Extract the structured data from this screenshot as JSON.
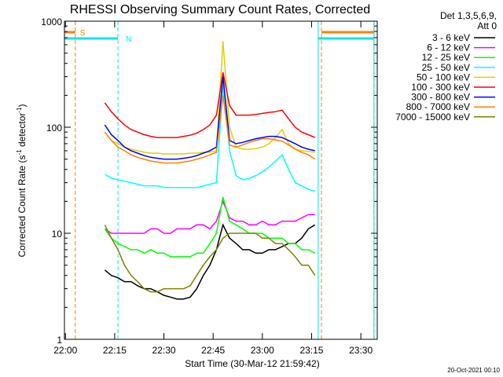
{
  "chart_data": {
    "type": "line",
    "title": "RHESSI Observing Summary Count Rates, Corrected",
    "x_label": "Start Time (30-Mar-12 21:59:42)",
    "y_label_parts": [
      "Corrected Count Rate (s",
      "-1",
      " detector",
      "-1",
      ")"
    ],
    "legend_header": [
      "Det 1,3,5,6,9,",
      "Att 0"
    ],
    "footer": "20-Oct-2021 00:10",
    "log_y": true,
    "xlim": [
      "21:59:42",
      "23:35"
    ],
    "xticks": [
      "22:00",
      "22:15",
      "22:30",
      "22:45",
      "23:00",
      "23:15",
      "23:30"
    ],
    "ylim": [
      1,
      1000
    ],
    "yticks": [
      1,
      10,
      100,
      1000
    ],
    "yminorticks": [
      2,
      3,
      4,
      5,
      6,
      7,
      8,
      9,
      20,
      30,
      40,
      50,
      60,
      70,
      80,
      90,
      200,
      300,
      400,
      500,
      600,
      700,
      800,
      900
    ],
    "flags": [
      {
        "label": "S",
        "color": "#ff8000",
        "intervals": [
          [
            "21:59:42",
            "22:03"
          ],
          [
            "23:18",
            "23:34"
          ]
        ]
      },
      {
        "label": "N",
        "color": "#00e8e8",
        "intervals": [
          [
            "21:59:42",
            "22:16"
          ],
          [
            "23:17",
            "23:34"
          ]
        ]
      }
    ],
    "x": [
      "22:12",
      "22:14",
      "22:16",
      "22:18",
      "22:20",
      "22:22",
      "22:24",
      "22:26",
      "22:28",
      "22:30",
      "22:32",
      "22:34",
      "22:36",
      "22:38",
      "22:40",
      "22:42",
      "22:44",
      "22:46",
      "22:48",
      "22:50",
      "22:52",
      "22:54",
      "22:56",
      "22:58",
      "23:00",
      "23:02",
      "23:04",
      "23:06",
      "23:08",
      "23:10",
      "23:12",
      "23:14",
      "23:16"
    ],
    "series": [
      {
        "name": "3 - 6 keV",
        "color": "#000000",
        "values": [
          4.5,
          4,
          3.8,
          3.5,
          3.5,
          3.2,
          3,
          3,
          2.8,
          2.6,
          2.5,
          2.4,
          2.4,
          2.5,
          3,
          4,
          5,
          7,
          12,
          9,
          8,
          7,
          7,
          6.5,
          6.5,
          7,
          7,
          7.5,
          8,
          8,
          9,
          11,
          12
        ]
      },
      {
        "name": "6 - 12 keV",
        "color": "#ff00ff",
        "values": [
          11,
          10,
          10,
          10,
          10,
          10,
          10,
          11,
          11,
          10,
          10,
          11,
          11,
          11,
          12,
          12,
          11,
          13,
          20,
          14,
          13,
          13,
          12,
          12,
          13,
          12,
          12,
          13,
          13,
          13,
          14,
          15,
          15
        ]
      },
      {
        "name": "12 - 25 keV",
        "color": "#00ff00",
        "values": [
          11,
          9,
          8,
          7.5,
          7,
          7,
          6.5,
          7,
          6.5,
          6.5,
          6,
          6,
          6,
          6,
          6.5,
          6.5,
          8,
          10,
          22,
          13,
          12,
          11,
          10,
          10,
          10,
          9,
          9,
          9,
          8,
          8,
          7,
          7,
          6.5
        ]
      },
      {
        "name": "25 - 50 keV",
        "color": "#00ffff",
        "values": [
          36,
          33,
          32,
          31,
          30,
          29,
          28,
          28,
          28,
          27,
          27,
          27,
          27,
          27,
          27,
          28,
          29,
          30,
          250,
          60,
          35,
          32,
          33,
          35,
          38,
          42,
          48,
          55,
          40,
          30,
          28,
          26,
          25
        ]
      },
      {
        "name": "50 - 100 keV",
        "color": "#e0d000",
        "values": [
          90,
          75,
          70,
          65,
          62,
          60,
          58,
          57,
          57,
          56,
          56,
          56,
          56,
          57,
          57,
          58,
          58,
          60,
          650,
          100,
          65,
          62,
          62,
          63,
          65,
          70,
          80,
          95,
          70,
          62,
          60,
          59,
          58
        ]
      },
      {
        "name": "100 - 300 keV",
        "color": "#ff0000",
        "values": [
          170,
          140,
          120,
          105,
          95,
          90,
          85,
          82,
          80,
          80,
          80,
          80,
          82,
          84,
          88,
          95,
          105,
          130,
          330,
          160,
          130,
          130,
          130,
          132,
          135,
          138,
          140,
          145,
          120,
          100,
          90,
          85,
          80
        ]
      },
      {
        "name": "300 - 800 keV",
        "color": "#0000ff",
        "values": [
          105,
          85,
          75,
          65,
          60,
          57,
          54,
          52,
          51,
          50,
          50,
          50,
          51,
          52,
          54,
          57,
          60,
          65,
          300,
          75,
          70,
          72,
          75,
          78,
          80,
          82,
          82,
          80,
          75,
          70,
          65,
          62,
          60
        ]
      },
      {
        "name": "800 - 7000 keV",
        "color": "#ff8000",
        "values": [
          90,
          75,
          65,
          60,
          55,
          52,
          50,
          48,
          47,
          46,
          46,
          46,
          47,
          48,
          50,
          52,
          55,
          58,
          200,
          68,
          65,
          68,
          72,
          75,
          78,
          78,
          76,
          74,
          68,
          62,
          58,
          55,
          50
        ]
      },
      {
        "name": "7000 - 15000 keV",
        "color": "#808000",
        "values": [
          12,
          9,
          7,
          5,
          4,
          3.5,
          3,
          2.8,
          2.8,
          3,
          3,
          3,
          3,
          3.2,
          4,
          5,
          6,
          7,
          9,
          10,
          10,
          10,
          10,
          10,
          9,
          9,
          8,
          8,
          7,
          6,
          5,
          5,
          4
        ]
      }
    ]
  }
}
